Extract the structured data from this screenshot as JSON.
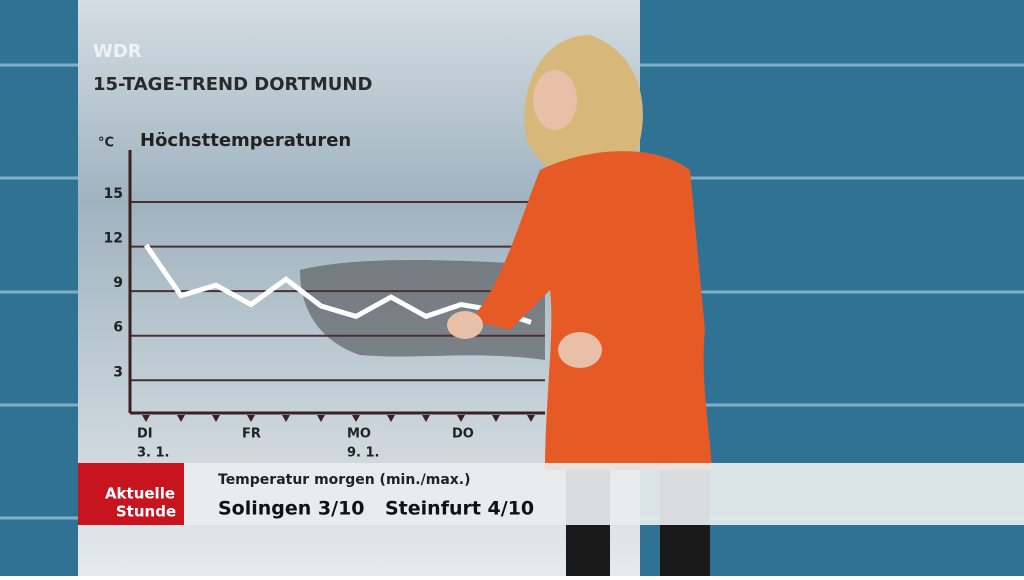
{
  "broadcast": {
    "channel": "WDR",
    "heading": "15-TAGE-TREND DORTMUND",
    "show_name_1": "Aktuelle",
    "show_name_2": "Stunde",
    "ticker_title": "Temperatur morgen (min./max.)",
    "ticker_items": [
      "Solingen 3/10",
      "Steinfurt 4/10"
    ]
  },
  "chart_data": {
    "type": "line",
    "title": "Höchsttemperaturen",
    "y_unit": "°C",
    "categories": [
      "DI",
      null,
      null,
      "FR",
      null,
      null,
      "MO",
      null,
      null,
      "DO",
      null,
      null
    ],
    "dates": [
      "3. 1.",
      null,
      null,
      null,
      null,
      null,
      "9. 1.",
      null,
      null,
      null,
      null,
      null
    ],
    "series": [
      {
        "name": "Höchsttemperaturen",
        "color": "#ffffff",
        "values": [
          12.1,
          8.7,
          9.4,
          8.1,
          9.8,
          8.0,
          7.3,
          8.6,
          7.3,
          8.1,
          7.7,
          6.9
        ]
      }
    ],
    "ylim": [
      0.8,
      18.5
    ],
    "yticks": [
      3,
      6,
      9,
      12,
      15
    ],
    "grid": true
  }
}
